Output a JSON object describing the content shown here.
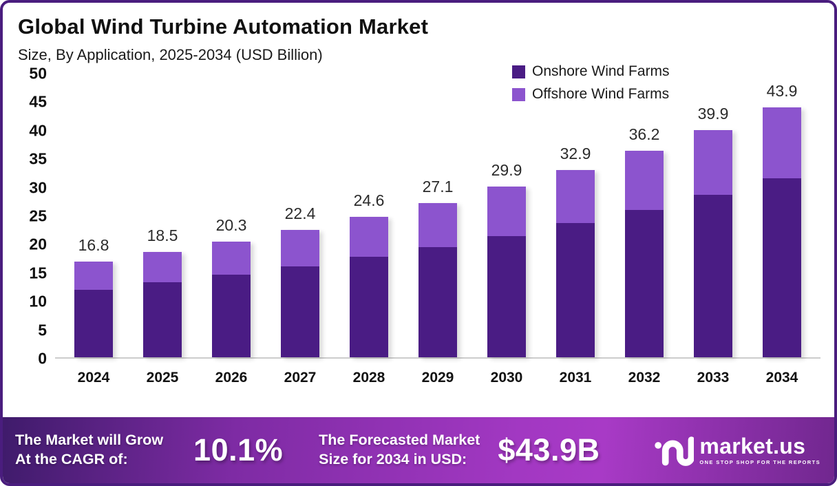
{
  "header": {
    "title": "Global Wind Turbine Automation Market",
    "subtitle": "Size, By Application, 2025-2034 (USD Billion)"
  },
  "legend": [
    {
      "label": "Onshore Wind Farms",
      "color": "#4A1C84"
    },
    {
      "label": "Offshore Wind Farms",
      "color": "#8C54CE"
    }
  ],
  "chart_data": {
    "type": "bar",
    "stacked": true,
    "title": "Global Wind Turbine Automation Market Size, By Application, 2025-2034 (USD Billion)",
    "categories": [
      "2024",
      "2025",
      "2026",
      "2027",
      "2028",
      "2029",
      "2030",
      "2031",
      "2032",
      "2033",
      "2034"
    ],
    "series": [
      {
        "name": "Onshore Wind Farms",
        "color": "#4A1C84",
        "values": [
          11.8,
          13.2,
          14.5,
          15.9,
          17.6,
          19.3,
          21.3,
          23.5,
          25.9,
          28.5,
          31.4
        ]
      },
      {
        "name": "Offshore Wind Farms",
        "color": "#8C54CE",
        "values": [
          5.0,
          5.3,
          5.8,
          6.5,
          7.0,
          7.8,
          8.6,
          9.4,
          10.3,
          11.4,
          12.5
        ]
      }
    ],
    "totals": [
      16.8,
      18.5,
      20.3,
      22.4,
      24.6,
      27.1,
      29.9,
      32.9,
      36.2,
      39.9,
      43.9
    ],
    "total_labels": [
      "16.8",
      "18.5",
      "20.3",
      "22.4",
      "24.6",
      "27.1",
      "29.9",
      "32.9",
      "36.2",
      "39.9",
      "43.9"
    ],
    "xlabel": "",
    "ylabel": "",
    "ylim": [
      0,
      50
    ],
    "yticks": [
      0,
      5,
      10,
      15,
      20,
      25,
      30,
      35,
      40,
      45,
      50
    ],
    "grid": false,
    "legend_position": "top-right"
  },
  "banner": {
    "cagr_label_line1": "The Market will Grow",
    "cagr_label_line2": "At the CAGR of:",
    "cagr_value": "10.1%",
    "forecast_label_line1": "The Forecasted Market",
    "forecast_label_line2": "Size for 2034 in USD:",
    "forecast_value": "$43.9B",
    "logo_text": "market.us",
    "logo_tagline": "ONE STOP SHOP FOR THE REPORTS"
  },
  "colors": {
    "onshore": "#4A1C84",
    "offshore": "#8C54CE",
    "border": "#4A1D7E",
    "baseline": "#cccccc",
    "banner_gradient_start": "#3F1B6B",
    "banner_gradient_mid": "#A238C2",
    "banner_gradient_end": "#71278F",
    "text": "#111111",
    "banner_text": "#ffffff"
  }
}
